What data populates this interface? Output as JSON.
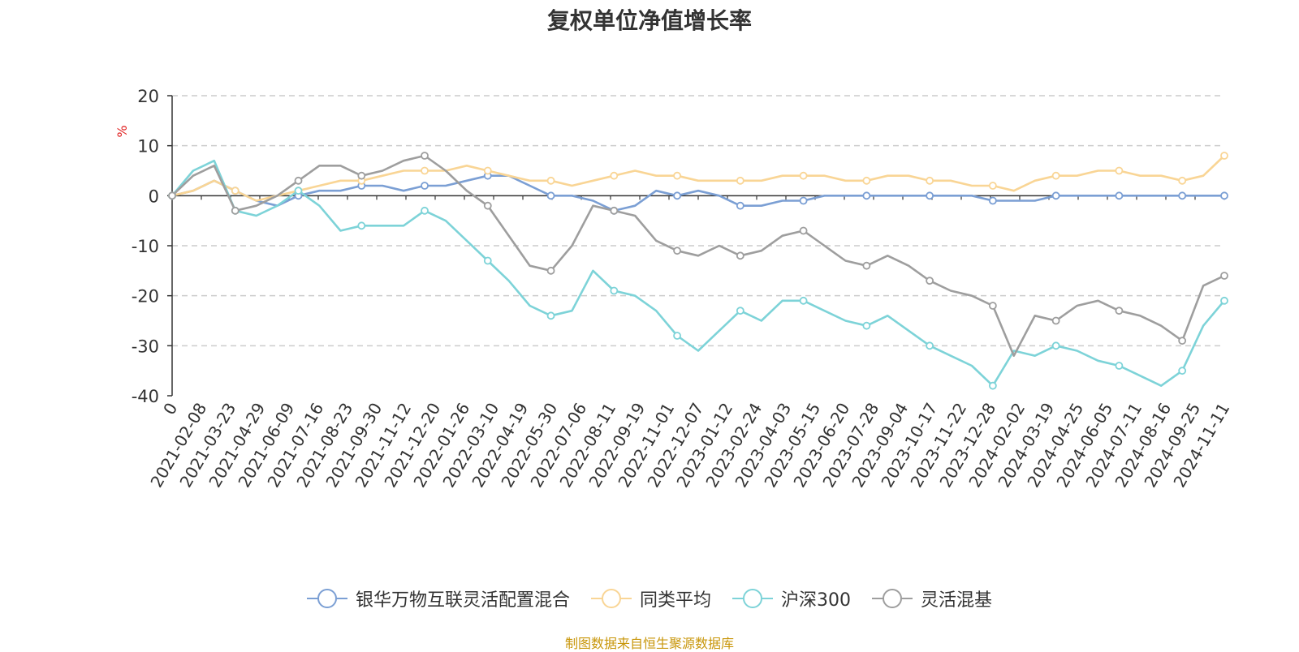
{
  "title": "复权单位净值增长率",
  "source_note": "制图数据来自恒生聚源数据库",
  "chart_data": {
    "type": "line",
    "title": "复权单位净值增长率",
    "ylabel": "%",
    "xlabel": "",
    "ylim": [
      -40,
      20
    ],
    "yticks": [
      20,
      10,
      0,
      -10,
      -20,
      -30,
      -40
    ],
    "grid": true,
    "legend_position": "bottom",
    "x_tick_labels": [
      "0",
      "2021-02-08",
      "2021-03-23",
      "2021-04-29",
      "2021-06-09",
      "2021-07-16",
      "2021-08-23",
      "2021-09-30",
      "2021-11-12",
      "2021-12-20",
      "2022-01-26",
      "2022-03-10",
      "2022-04-19",
      "2022-05-30",
      "2022-07-06",
      "2022-08-11",
      "2022-09-19",
      "2022-11-01",
      "2022-12-07",
      "2023-01-12",
      "2023-02-24",
      "2023-04-03",
      "2023-05-15",
      "2023-06-20",
      "2023-07-28",
      "2023-09-04",
      "2023-10-17",
      "2023-11-22",
      "2023-12-28",
      "2024-02-02",
      "2024-03-19",
      "2024-04-25",
      "2024-06-05",
      "2024-07-11",
      "2024-08-16",
      "2024-09-25",
      "2024-11-11"
    ],
    "series": [
      {
        "name": "银华万物互联灵活配置混合",
        "color": "#7b9fd4",
        "values": [
          0,
          1,
          3,
          1,
          -1,
          -2,
          0,
          1,
          1,
          2,
          2,
          1,
          2,
          2,
          3,
          4,
          4,
          2,
          0,
          0,
          -1,
          -3,
          -2,
          1,
          0,
          1,
          0,
          -2,
          -2,
          -1,
          -1,
          0,
          0,
          0,
          0,
          0,
          0,
          0,
          0,
          -1,
          -1,
          -1,
          0,
          0,
          0,
          0,
          0,
          0,
          0,
          0,
          0
        ]
      },
      {
        "name": "同类平均",
        "color": "#f9d595",
        "values": [
          0,
          1,
          3,
          1,
          -1,
          0,
          1,
          2,
          3,
          3,
          4,
          5,
          5,
          5,
          6,
          5,
          4,
          3,
          3,
          2,
          3,
          4,
          5,
          4,
          4,
          3,
          3,
          3,
          3,
          4,
          4,
          4,
          3,
          3,
          4,
          4,
          3,
          3,
          2,
          2,
          1,
          3,
          4,
          4,
          5,
          5,
          4,
          4,
          3,
          4,
          8
        ]
      },
      {
        "name": "沪深300",
        "color": "#7dd3d8",
        "values": [
          0,
          5,
          7,
          -3,
          -4,
          -2,
          1,
          -2,
          -7,
          -6,
          -6,
          -6,
          -3,
          -5,
          -9,
          -13,
          -17,
          -22,
          -24,
          -23,
          -15,
          -19,
          -20,
          -23,
          -28,
          -31,
          -27,
          -23,
          -25,
          -21,
          -21,
          -23,
          -25,
          -26,
          -24,
          -27,
          -30,
          -32,
          -34,
          -38,
          -31,
          -32,
          -30,
          -31,
          -33,
          -34,
          -36,
          -38,
          -35,
          -26,
          -21
        ]
      },
      {
        "name": "灵活混基",
        "color": "#9e9e9e",
        "values": [
          0,
          4,
          6,
          -3,
          -2,
          0,
          3,
          6,
          6,
          4,
          5,
          7,
          8,
          5,
          1,
          -2,
          -8,
          -14,
          -15,
          -10,
          -2,
          -3,
          -4,
          -9,
          -11,
          -12,
          -10,
          -12,
          -11,
          -8,
          -7,
          -10,
          -13,
          -14,
          -12,
          -14,
          -17,
          -19,
          -20,
          -22,
          -32,
          -24,
          -25,
          -22,
          -21,
          -23,
          -24,
          -26,
          -29,
          -18,
          -16
        ]
      }
    ]
  }
}
